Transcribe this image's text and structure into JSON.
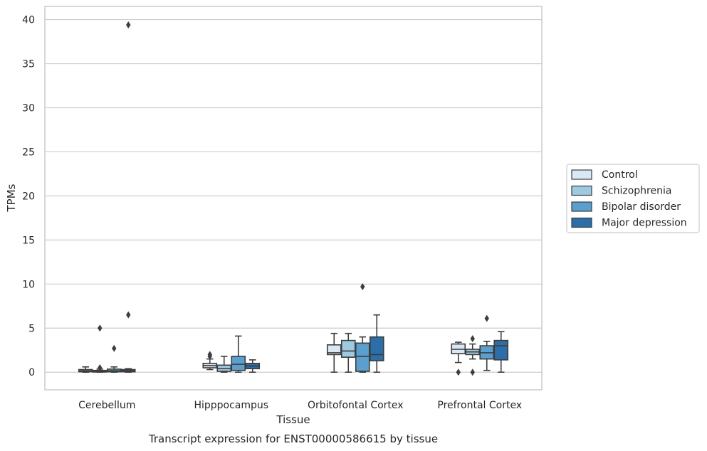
{
  "caption": "Transcript expression for ENST00000586615 by tissue",
  "chart_data": {
    "type": "box",
    "xlabel": "Tissue",
    "ylabel": "TPMs",
    "ylim": [
      -2,
      41.5
    ],
    "yticks": [
      0,
      5,
      10,
      15,
      20,
      25,
      30,
      35,
      40
    ],
    "grid": true,
    "legend_position": "right",
    "categories": [
      "Cerebellum",
      "Hipppocampus",
      "Orbitofontal Cortex",
      "Prefrontal Cortex"
    ],
    "series": [
      {
        "name": "Control",
        "color": "#dae8f5",
        "boxes": [
          {
            "whislo": 0.0,
            "q1": 0.05,
            "med": 0.15,
            "q3": 0.3,
            "whishi": 0.6,
            "fliers": []
          },
          {
            "whislo": 0.3,
            "q1": 0.5,
            "med": 0.75,
            "q3": 1.0,
            "whishi": 1.5,
            "fliers": [
              2.0,
              1.8
            ]
          },
          {
            "whislo": 0.0,
            "q1": 2.0,
            "med": 2.2,
            "q3": 3.1,
            "whishi": 4.4,
            "fliers": []
          },
          {
            "whislo": 1.1,
            "q1": 2.1,
            "med": 2.6,
            "q3": 3.2,
            "whishi": 3.4,
            "fliers": [
              0.0
            ]
          }
        ]
      },
      {
        "name": "Schizophrenia",
        "color": "#9ecae1",
        "boxes": [
          {
            "whislo": 0.0,
            "q1": 0.02,
            "med": 0.08,
            "q3": 0.2,
            "whishi": 0.35,
            "fliers": [
              0.5,
              5.0
            ]
          },
          {
            "whislo": 0.0,
            "q1": 0.1,
            "med": 0.4,
            "q3": 0.8,
            "whishi": 1.8,
            "fliers": []
          },
          {
            "whislo": 0.0,
            "q1": 1.7,
            "med": 2.4,
            "q3": 3.6,
            "whishi": 4.4,
            "fliers": []
          },
          {
            "whislo": 1.5,
            "q1": 2.0,
            "med": 2.3,
            "q3": 2.6,
            "whishi": 3.2,
            "fliers": [
              3.8,
              0.0
            ]
          }
        ]
      },
      {
        "name": "Bipolar disorder",
        "color": "#5a9fce",
        "boxes": [
          {
            "whislo": 0.0,
            "q1": 0.05,
            "med": 0.15,
            "q3": 0.35,
            "whishi": 0.6,
            "fliers": [
              2.7
            ]
          },
          {
            "whislo": 0.0,
            "q1": 0.2,
            "med": 0.9,
            "q3": 1.8,
            "whishi": 4.1,
            "fliers": []
          },
          {
            "whislo": 0.0,
            "q1": 0.1,
            "med": 1.8,
            "q3": 3.3,
            "whishi": 4.0,
            "fliers": [
              9.7
            ]
          },
          {
            "whislo": 0.2,
            "q1": 1.5,
            "med": 2.2,
            "q3": 3.0,
            "whishi": 3.5,
            "fliers": [
              6.1
            ]
          }
        ]
      },
      {
        "name": "Major depression",
        "color": "#2c6ea8",
        "boxes": [
          {
            "whislo": 0.0,
            "q1": 0.05,
            "med": 0.15,
            "q3": 0.3,
            "whishi": 0.4,
            "fliers": [
              6.5,
              39.4
            ]
          },
          {
            "whislo": 0.0,
            "q1": 0.4,
            "med": 0.7,
            "q3": 1.0,
            "whishi": 1.4,
            "fliers": []
          },
          {
            "whislo": 0.0,
            "q1": 1.3,
            "med": 2.0,
            "q3": 4.0,
            "whishi": 6.5,
            "fliers": []
          },
          {
            "whislo": 0.0,
            "q1": 1.4,
            "med": 3.0,
            "q3": 3.6,
            "whishi": 4.6,
            "fliers": []
          }
        ]
      }
    ]
  }
}
